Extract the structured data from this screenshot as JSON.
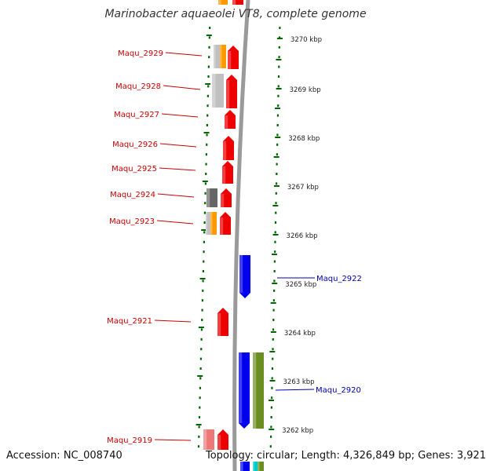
{
  "title": "Marinobacter aquaeolei VT8, complete genome",
  "footer": {
    "accession": "Accession: NC_008740",
    "summary": "Topology: circular; Length: 4,326,849 bp; Genes: 3,921"
  },
  "colors": {
    "forward_label": "#cc0000",
    "reverse_label": "#0000aa",
    "forward_cds": "#ee0000",
    "reverse_cds": "#0000ee",
    "tick": "#006600",
    "backbone": "#9a9a9a"
  },
  "scale_ticks": [
    "3270 kbp",
    "3269 kbp",
    "3268 kbp",
    "3267 kbp",
    "3266 kbp",
    "3265 kbp",
    "3264 kbp",
    "3263 kbp",
    "3262 kbp"
  ],
  "gene_labels": [
    {
      "name": "Maqu_2929",
      "strand": "forward"
    },
    {
      "name": "Maqu_2928",
      "strand": "forward"
    },
    {
      "name": "Maqu_2927",
      "strand": "forward"
    },
    {
      "name": "Maqu_2926",
      "strand": "forward"
    },
    {
      "name": "Maqu_2925",
      "strand": "forward"
    },
    {
      "name": "Maqu_2924",
      "strand": "forward"
    },
    {
      "name": "Maqu_2923",
      "strand": "forward"
    },
    {
      "name": "Maqu_2922",
      "strand": "reverse"
    },
    {
      "name": "Maqu_2921",
      "strand": "forward"
    },
    {
      "name": "Maqu_2920",
      "strand": "reverse"
    },
    {
      "name": "Maqu_2919",
      "strand": "forward"
    }
  ]
}
